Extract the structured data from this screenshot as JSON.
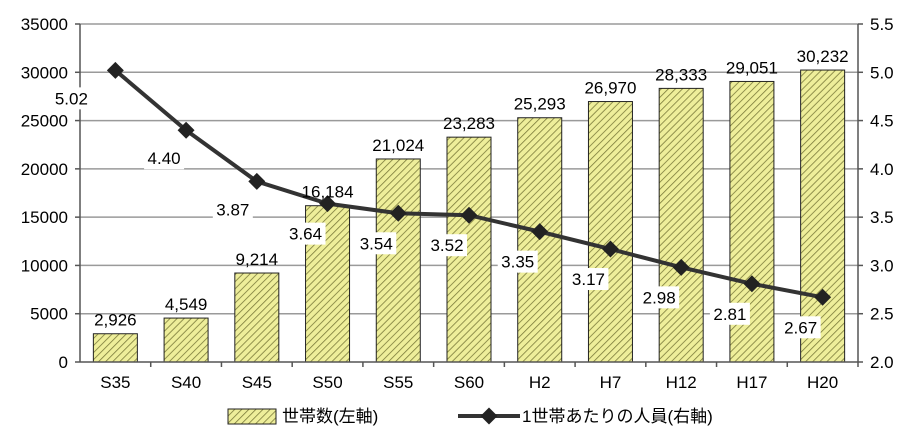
{
  "chart_data": {
    "type": "bar",
    "categories": [
      "S35",
      "S40",
      "S45",
      "S50",
      "S55",
      "S60",
      "H2",
      "H7",
      "H12",
      "H17",
      "H20"
    ],
    "series": [
      {
        "name": "世帯数(左軸)",
        "type": "bar",
        "axis": "left",
        "values": [
          2926,
          4549,
          9214,
          16184,
          21024,
          23283,
          25293,
          26970,
          28333,
          29051,
          30232
        ],
        "labels": [
          "2,926",
          "4,549",
          "9,214",
          "16,184",
          "21,024",
          "23,283",
          "25,293",
          "26,970",
          "28,333",
          "29,051",
          "30,232"
        ]
      },
      {
        "name": "1世帯あたりの人員(右軸)",
        "type": "line",
        "axis": "right",
        "values": [
          5.02,
          4.4,
          3.87,
          3.64,
          3.54,
          3.52,
          3.35,
          3.17,
          2.98,
          2.81,
          2.67
        ],
        "labels": [
          "5.02",
          "4.40",
          "3.87",
          "3.64",
          "3.54",
          "3.52",
          "3.35",
          "3.17",
          "2.98",
          "2.81",
          "2.67"
        ]
      }
    ],
    "y_left": {
      "range": [
        0,
        35000
      ],
      "ticks": [
        0,
        5000,
        10000,
        15000,
        20000,
        25000,
        30000,
        35000
      ],
      "tick_labels": [
        "0",
        "5000",
        "10000",
        "15000",
        "20000",
        "25000",
        "30000",
        "35000"
      ]
    },
    "y_right": {
      "range": [
        2.0,
        5.5
      ],
      "ticks": [
        2.0,
        2.5,
        3.0,
        3.5,
        4.0,
        4.5,
        5.0,
        5.5
      ],
      "tick_labels": [
        "2.0",
        "2.5",
        "3.0",
        "3.5",
        "4.0",
        "4.5",
        "5.0",
        "5.5"
      ]
    },
    "grid": true,
    "legend": "bottom",
    "colors": {
      "bar_fill": "#eeee9a",
      "bar_hatch": "#7a7a3a",
      "bar_border": "#222222",
      "line": "#333333",
      "grid": "#9a9a9a"
    }
  }
}
